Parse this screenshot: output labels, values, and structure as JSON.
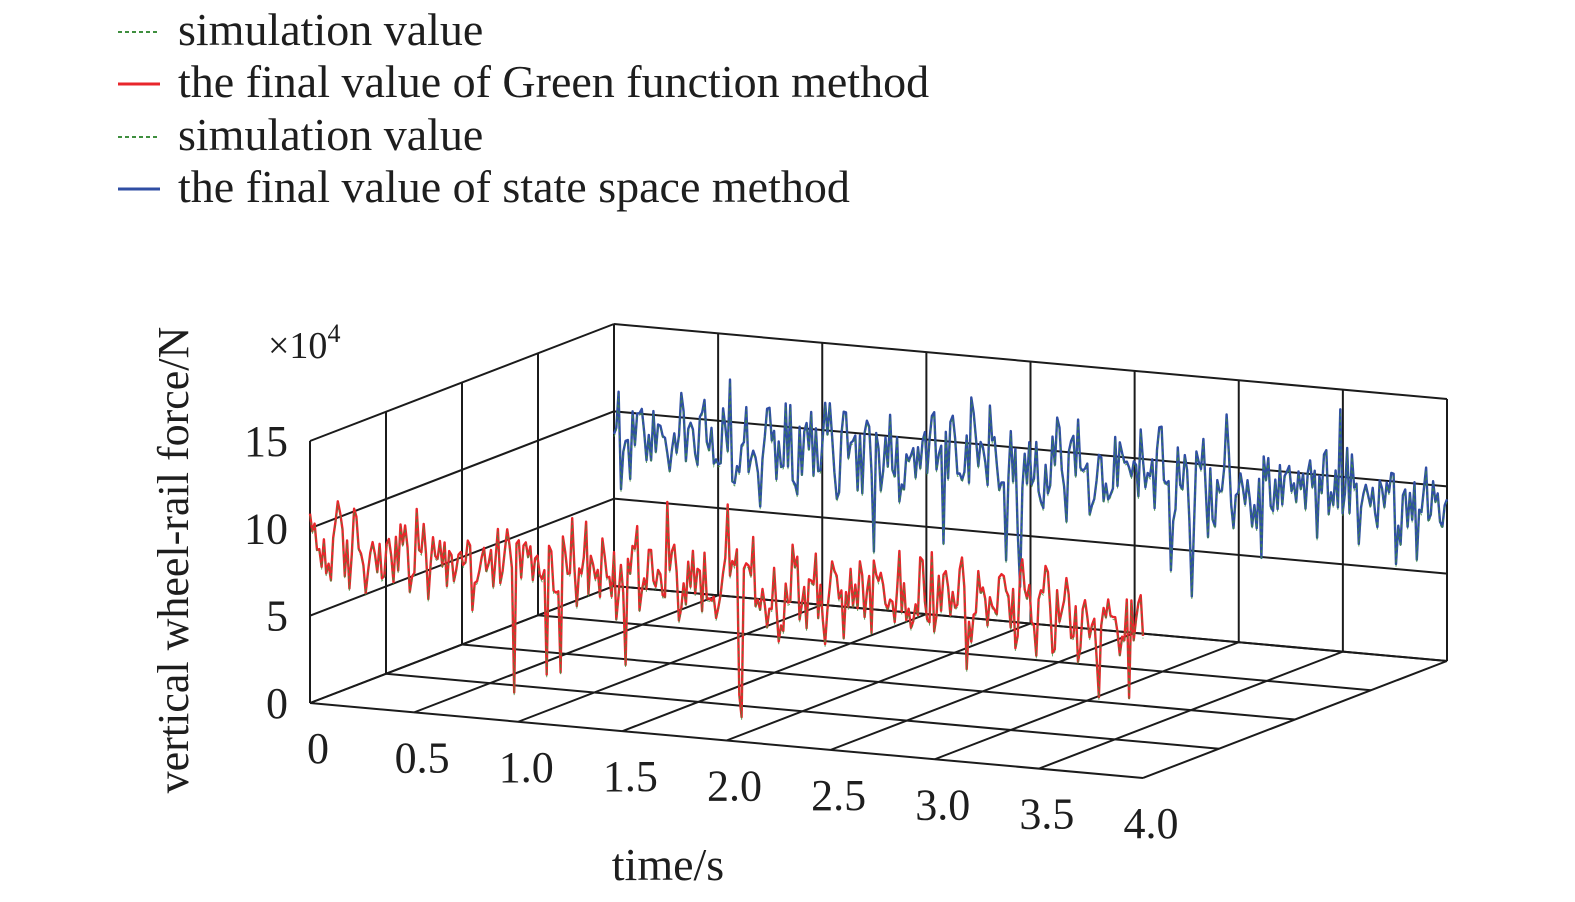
{
  "chart_data": {
    "type": "line",
    "projection": "3d",
    "title": "",
    "xlabel": "time/s",
    "zlabel": "vertical wheel-rail force/N",
    "z_multiplier_label": "×10",
    "z_multiplier_exponent": "4",
    "xlim": [
      0,
      4
    ],
    "zlim": [
      0,
      15
    ],
    "x_ticks": [
      "0",
      "0.5",
      "1.0",
      "1.5",
      "2.0",
      "2.5",
      "3.0",
      "3.5",
      "4.0"
    ],
    "z_ticks": [
      "0",
      "5",
      "10",
      "15"
    ],
    "grid": true,
    "legend_position": "top-left",
    "legend": [
      {
        "label": "simulation value",
        "color": "#3f8f3f",
        "style": "dashed"
      },
      {
        "label": "the final value of Green function method",
        "color": "#e8262b",
        "style": "solid"
      },
      {
        "label": "simulation value",
        "color": "#3f8f3f",
        "style": "dashed"
      },
      {
        "label": "the final value of state space method",
        "color": "#2f4ea3",
        "style": "solid"
      }
    ],
    "series": [
      {
        "name": "the final value of Green function method",
        "color": "#e8262b",
        "mean": 9.0,
        "amplitude": 2.6,
        "x_range": [
          0,
          4
        ]
      },
      {
        "name": "simulation value",
        "color": "#3f8f3f",
        "mean": 9.0,
        "amplitude": 2.6,
        "x_range": [
          0,
          4
        ]
      },
      {
        "name": "the final value of state space method",
        "color": "#2f4ea3",
        "mean": 9.0,
        "amplitude": 2.6,
        "x_range": [
          0,
          4
        ]
      },
      {
        "name": "simulation value",
        "color": "#3f8f3f",
        "mean": 9.0,
        "amplitude": 2.6,
        "x_range": [
          0,
          4
        ]
      }
    ]
  }
}
